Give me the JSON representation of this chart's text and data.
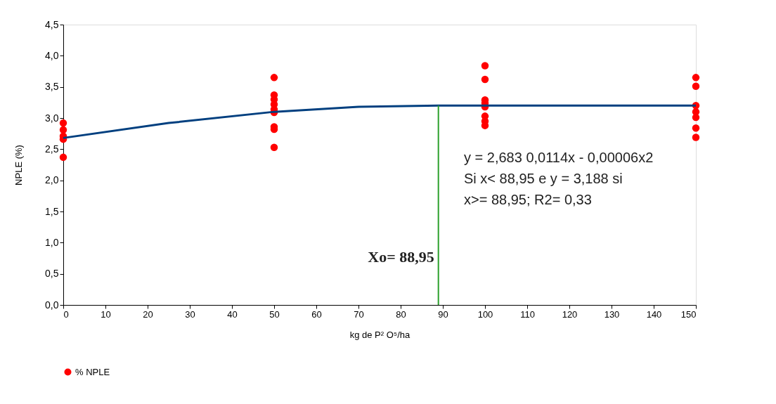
{
  "chart_data": {
    "type": "scatter",
    "xlabel": "kg de P² O⁵/ha",
    "ylabel": "NPLE (%)",
    "xlim": [
      0,
      150
    ],
    "xticks": [
      0,
      10,
      20,
      30,
      40,
      50,
      60,
      70,
      80,
      90,
      100,
      110,
      120,
      130,
      140,
      150
    ],
    "ylim": [
      0,
      4.5
    ],
    "yticks": [
      {
        "value": 0,
        "label": "0,0"
      },
      {
        "value": 0.5,
        "label": "0,5"
      },
      {
        "value": 1,
        "label": "1,0"
      },
      {
        "value": 1.5,
        "label": "1,5"
      },
      {
        "value": 2,
        "label": "2,0"
      },
      {
        "value": 2.5,
        "label": "2,5"
      },
      {
        "value": 3,
        "label": "3,0"
      },
      {
        "value": 3.5,
        "label": "3,5"
      },
      {
        "value": 4,
        "label": "4,0"
      },
      {
        "value": 4.5,
        "label": "4,5"
      }
    ],
    "grid": false,
    "legend": "bottom",
    "marker": "circle",
    "series": [
      {
        "name": "% NPLE",
        "color": "#ff0000",
        "x": [
          0,
          0,
          0,
          0,
          0,
          50,
          50,
          50,
          50,
          50,
          50,
          50,
          50,
          50,
          100,
          100,
          100,
          100,
          100,
          100,
          100,
          100,
          150,
          150,
          150,
          150,
          150,
          150,
          150
        ],
        "values": [
          2.92,
          2.81,
          2.71,
          2.66,
          2.37,
          3.65,
          3.37,
          3.3,
          3.22,
          3.14,
          3.09,
          2.86,
          2.82,
          2.53,
          3.84,
          3.62,
          3.29,
          3.24,
          3.18,
          3.03,
          2.95,
          2.88,
          3.65,
          3.51,
          3.2,
          3.1,
          3.01,
          2.84,
          2.69
        ]
      },
      {
        "type": "line",
        "color": "#003f7f",
        "marker": "none",
        "x": [
          0,
          25,
          50,
          70,
          88.95,
          150
        ],
        "values": [
          2.68,
          2.92,
          3.1,
          3.18,
          3.2,
          3.2
        ]
      }
    ],
    "ref_lines": [
      {
        "axis": "x",
        "value": 88.95,
        "label": "Xo= 88,95",
        "color": "#2ca02c"
      }
    ],
    "annotations": [
      "y = 2,683  0,0114x - 0,00006x2",
      "Si x< 88,95 e y = 3,188 si",
      "x>= 88,95; R2= 0,33"
    ]
  }
}
